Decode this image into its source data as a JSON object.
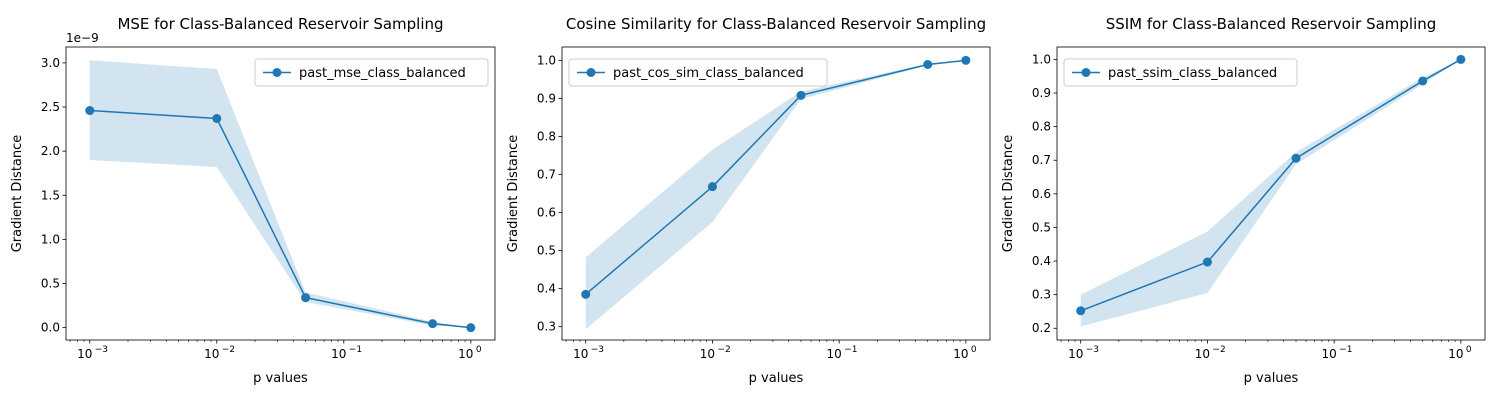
{
  "figure": {
    "background": "#ffffff",
    "line_color": "#1f77b4",
    "band_color": "#1f77b4",
    "band_opacity": 0.2
  },
  "chart_data": [
    {
      "type": "line",
      "title": "MSE for Class-Balanced Reservoir Sampling",
      "xlabel": "p values",
      "ylabel": "Gradient Distance",
      "xscale": "log",
      "xlim": [
        0.00065,
        1.55
      ],
      "ylim": [
        -1.4e-10,
        3.18e-09
      ],
      "xticks": [
        0.001,
        0.01,
        0.1,
        1
      ],
      "xtick_labels": [
        "10",
        "10",
        "10",
        "10"
      ],
      "xtick_exponents": [
        "−3",
        "−2",
        "−1",
        "0"
      ],
      "yticks": [
        0,
        5e-10,
        1e-09,
        1.5e-09,
        2e-09,
        2.5e-09,
        3e-09
      ],
      "ytick_labels": [
        "0.0",
        "0.5",
        "1.0",
        "1.5",
        "2.0",
        "2.5",
        "3.0"
      ],
      "y_offset_label": "1e−9",
      "x": [
        0.001,
        0.01,
        0.05,
        0.5,
        1.0
      ],
      "series": [
        {
          "name": "past_mse_class_balanced",
          "values": [
            2.46e-09,
            2.37e-09,
            3.4e-10,
            4.5e-11,
            0
          ],
          "lower": [
            1.9e-09,
            1.82e-09,
            2.9e-10,
            2.5e-11,
            0
          ],
          "upper": [
            3.03e-09,
            2.93e-09,
            4e-10,
            6.5e-11,
            0
          ],
          "marker": "circle",
          "color": "#1f77b4"
        }
      ],
      "legend": "upper right",
      "grid": false
    },
    {
      "type": "line",
      "title": "Cosine Similarity for Class-Balanced Reservoir Sampling",
      "xlabel": "p values",
      "ylabel": "Gradient Distance",
      "xscale": "log",
      "xlim": [
        0.00065,
        1.55
      ],
      "ylim": [
        0.265,
        1.035
      ],
      "xticks": [
        0.001,
        0.01,
        0.1,
        1
      ],
      "xtick_labels": [
        "10",
        "10",
        "10",
        "10"
      ],
      "xtick_exponents": [
        "−3",
        "−2",
        "−1",
        "0"
      ],
      "yticks": [
        0.3,
        0.4,
        0.5,
        0.6,
        0.7,
        0.8,
        0.9,
        1.0
      ],
      "ytick_labels": [
        "0.3",
        "0.4",
        "0.5",
        "0.6",
        "0.7",
        "0.8",
        "0.9",
        "1.0"
      ],
      "x": [
        0.001,
        0.01,
        0.05,
        0.5,
        1.0
      ],
      "series": [
        {
          "name": "past_cos_sim_class_balanced",
          "values": [
            0.385,
            0.668,
            0.908,
            0.989,
            1.0
          ],
          "lower": [
            0.293,
            0.575,
            0.898,
            0.987,
            1.0
          ],
          "upper": [
            0.482,
            0.765,
            0.918,
            0.991,
            1.0
          ],
          "marker": "circle",
          "color": "#1f77b4"
        }
      ],
      "legend": "upper left",
      "grid": false
    },
    {
      "type": "line",
      "title": "SSIM for Class-Balanced Reservoir Sampling",
      "xlabel": "p values",
      "ylabel": "Gradient Distance",
      "xscale": "log",
      "xlim": [
        0.00065,
        1.55
      ],
      "ylim": [
        0.165,
        1.037
      ],
      "xticks": [
        0.001,
        0.01,
        0.1,
        1
      ],
      "xtick_labels": [
        "10",
        "10",
        "10",
        "10"
      ],
      "xtick_exponents": [
        "−3",
        "−2",
        "−1",
        "0"
      ],
      "yticks": [
        0.2,
        0.3,
        0.4,
        0.5,
        0.6,
        0.7,
        0.8,
        0.9,
        1.0
      ],
      "ytick_labels": [
        "0.2",
        "0.3",
        "0.4",
        "0.5",
        "0.6",
        "0.7",
        "0.8",
        "0.9",
        "1.0"
      ],
      "x": [
        0.001,
        0.01,
        0.05,
        0.5,
        1.0
      ],
      "series": [
        {
          "name": "past_ssim_class_balanced",
          "values": [
            0.252,
            0.397,
            0.706,
            0.936,
            1.0
          ],
          "lower": [
            0.205,
            0.305,
            0.688,
            0.926,
            1.0
          ],
          "upper": [
            0.3,
            0.488,
            0.724,
            0.946,
            1.0
          ],
          "marker": "circle",
          "color": "#1f77b4"
        }
      ],
      "legend": "upper left",
      "grid": false
    }
  ]
}
